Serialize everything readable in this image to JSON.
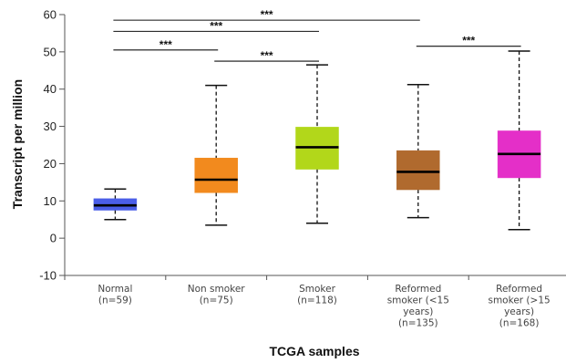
{
  "chart_data": {
    "type": "box",
    "xlabel": "TCGA samples",
    "ylabel": "Transcript per million",
    "ylim": [
      -10,
      60
    ],
    "yticks": [
      -10,
      0,
      10,
      20,
      30,
      40,
      50,
      60
    ],
    "grid": false,
    "categories": [
      {
        "lines": [
          "Normal",
          "(n=59)"
        ]
      },
      {
        "lines": [
          "Non smoker",
          "(n=75)"
        ]
      },
      {
        "lines": [
          "Smoker",
          "(n=118)"
        ]
      },
      {
        "lines": [
          "Reformed",
          "smoker (<15",
          "years)",
          "(n=135)"
        ]
      },
      {
        "lines": [
          "Reformed",
          "smoker (>15",
          "years)",
          "(n=168)"
        ]
      }
    ],
    "boxes": [
      {
        "min": 5.0,
        "q1": 7.5,
        "median": 8.8,
        "q3": 10.6,
        "max": 13.2,
        "color": "#4a5ee8"
      },
      {
        "min": 3.5,
        "q1": 12.2,
        "median": 15.7,
        "q3": 21.5,
        "max": 41.0,
        "color": "#f28a1e"
      },
      {
        "min": 4.0,
        "q1": 18.5,
        "median": 24.4,
        "q3": 29.8,
        "max": 46.5,
        "color": "#b2d71a"
      },
      {
        "min": 5.5,
        "q1": 13.0,
        "median": 17.8,
        "q3": 23.5,
        "max": 41.2,
        "color": "#b06a2e"
      },
      {
        "min": 2.3,
        "q1": 16.2,
        "median": 22.6,
        "q3": 28.8,
        "max": 50.2,
        "color": "#e42fc8"
      }
    ],
    "annotations": [
      {
        "from": 0,
        "to": 3,
        "y": 58.5,
        "label": "***"
      },
      {
        "from": 0,
        "to": 2,
        "y": 55.5,
        "label": "***"
      },
      {
        "from": 0,
        "to": 1,
        "y": 50.5,
        "label": "***"
      },
      {
        "from": 1,
        "to": 2,
        "y": 47.5,
        "label": "***"
      },
      {
        "from": 3,
        "to": 4,
        "y": 51.5,
        "label": "***"
      }
    ]
  }
}
